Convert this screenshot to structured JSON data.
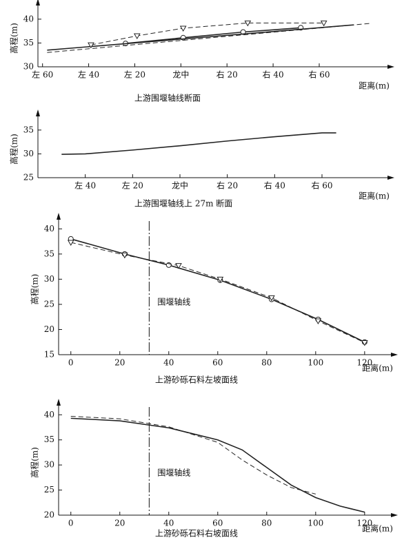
{
  "chart_data": [
    {
      "type": "line",
      "title": "上游围堰轴线断面",
      "ylabel": "高程(m)",
      "xlabel": "距离(m)",
      "ylim": [
        30,
        42
      ],
      "yticks": [
        30,
        35,
        40
      ],
      "xlim": [
        -62,
        92
      ],
      "xticks": [
        {
          "value": -60,
          "label": "左 60"
        },
        {
          "value": -40,
          "label": "左 40"
        },
        {
          "value": -20,
          "label": "左 20"
        },
        {
          "value": 0,
          "label": "龙中"
        },
        {
          "value": 20,
          "label": "右 20"
        },
        {
          "value": 40,
          "label": "右 40"
        },
        {
          "value": 60,
          "label": "右 60"
        }
      ],
      "series": [
        {
          "color": "#222222",
          "dashed": false,
          "marker": "circle",
          "x": [
            -24,
            1,
            27,
            52
          ],
          "values": [
            34.9,
            36.1,
            37.3,
            38.2
          ]
        },
        {
          "color": "#222222",
          "dashed": false,
          "marker": "none",
          "x": [
            -58,
            75
          ],
          "values": [
            33.5,
            38.8
          ]
        },
        {
          "color": "#222222",
          "dashed": true,
          "marker": "triangle",
          "x": [
            -39,
            -19,
            1,
            29,
            62
          ],
          "values": [
            34.6,
            36.5,
            38.1,
            39.2,
            39.2
          ]
        },
        {
          "color": "#222222",
          "dashed": true,
          "marker": "none",
          "x": [
            -58,
            82
          ],
          "values": [
            33.0,
            39.1
          ]
        }
      ]
    },
    {
      "type": "line",
      "title": "上游围堰轴线上 27m 断面",
      "ylabel": "高程(m)",
      "xlabel": "距离(m)",
      "ylim": [
        25,
        37
      ],
      "yticks": [
        25,
        30,
        35
      ],
      "xlim": [
        -60,
        90
      ],
      "xticks": [
        {
          "value": -40,
          "label": "左 40"
        },
        {
          "value": -20,
          "label": "左 20"
        },
        {
          "value": 0,
          "label": "龙中"
        },
        {
          "value": 20,
          "label": "右 20"
        },
        {
          "value": 40,
          "label": "右 40"
        },
        {
          "value": 60,
          "label": "右 60"
        }
      ],
      "series": [
        {
          "color": "#222222",
          "dashed": false,
          "marker": "none",
          "x": [
            -50,
            -40,
            -20,
            0,
            20,
            40,
            60,
            66
          ],
          "values": [
            29.9,
            30.0,
            30.8,
            31.7,
            32.7,
            33.6,
            34.4,
            34.4
          ]
        }
      ]
    },
    {
      "type": "line",
      "title": "上游砂砾石料左坡面线",
      "ylabel": "高程(m)",
      "xlabel": "距离(m)",
      "ylim": [
        15,
        41
      ],
      "yticks": [
        15,
        20,
        25,
        30,
        35,
        40
      ],
      "xlim": [
        -5,
        133
      ],
      "xticks": [
        0,
        20,
        40,
        60,
        80,
        100,
        120
      ],
      "vline": 32,
      "vline_label": "围堰轴线",
      "series": [
        {
          "color": "#222222",
          "dashed": false,
          "marker": "circle",
          "x": [
            0,
            22,
            40,
            61,
            82,
            101,
            120
          ],
          "values": [
            38,
            35,
            32.8,
            29.8,
            26,
            22,
            17.5
          ]
        },
        {
          "color": "#222222",
          "dashed": true,
          "marker": "triangle",
          "x": [
            0,
            22,
            44,
            61,
            82,
            101,
            120
          ],
          "values": [
            37.3,
            34.8,
            32.7,
            30,
            26.3,
            21.7,
            17.4
          ]
        }
      ]
    },
    {
      "type": "line",
      "title": "上游砂砾石料右坡面线",
      "ylabel": "高程(m)",
      "xlabel": "距离(m)",
      "ylim": [
        20,
        41
      ],
      "yticks": [
        20,
        25,
        30,
        35,
        40
      ],
      "xlim": [
        -5,
        133
      ],
      "xticks": [
        0,
        20,
        40,
        60,
        80,
        100,
        120
      ],
      "vline": 32,
      "vline_label": "围堰轴线",
      "series": [
        {
          "color": "#222222",
          "dashed": false,
          "marker": "none",
          "x": [
            0,
            20,
            40,
            60,
            70,
            80,
            90,
            100,
            110,
            120
          ],
          "values": [
            39.3,
            38.8,
            37.4,
            35,
            33,
            29.5,
            26,
            23.5,
            21.8,
            20.6
          ]
        },
        {
          "color": "#222222",
          "dashed": true,
          "marker": "none",
          "x": [
            0,
            20,
            40,
            60,
            70,
            80,
            90,
            100
          ],
          "values": [
            39.7,
            39.2,
            37.6,
            34.5,
            31,
            28,
            25.5,
            24.2
          ]
        }
      ]
    }
  ]
}
